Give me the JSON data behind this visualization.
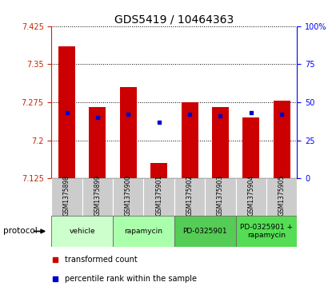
{
  "title": "GDS5419 / 10464363",
  "samples": [
    "GSM1375898",
    "GSM1375899",
    "GSM1375900",
    "GSM1375901",
    "GSM1375902",
    "GSM1375903",
    "GSM1375904",
    "GSM1375905"
  ],
  "transformed_counts": [
    7.385,
    7.265,
    7.305,
    7.155,
    7.275,
    7.265,
    7.245,
    7.278
  ],
  "percentile_ranks": [
    43,
    40,
    42,
    37,
    42,
    41,
    43,
    42
  ],
  "ylim_left": [
    7.125,
    7.425
  ],
  "yticks_left": [
    7.125,
    7.2,
    7.275,
    7.35,
    7.425
  ],
  "ytick_labels_left": [
    "7.125",
    "7.2",
    "7.275",
    "7.35",
    "7.425"
  ],
  "ylim_right": [
    0,
    100
  ],
  "yticks_right": [
    0,
    25,
    50,
    75,
    100
  ],
  "ytick_labels_right": [
    "0",
    "25",
    "50",
    "75",
    "100%"
  ],
  "bar_color": "#cc0000",
  "dot_color": "#0000cc",
  "bar_bottom": 7.125,
  "protocol_groups": [
    {
      "label": "vehicle",
      "indices": [
        0,
        1
      ],
      "color": "#ccffcc"
    },
    {
      "label": "rapamycin",
      "indices": [
        2,
        3
      ],
      "color": "#aaffaa"
    },
    {
      "label": "PD-0325901",
      "indices": [
        4,
        5
      ],
      "color": "#55cc55"
    },
    {
      "label": "PD-0325901 +\nrapamycin",
      "indices": [
        6,
        7
      ],
      "color": "#55dd55"
    }
  ],
  "sample_bg_color": "#cccccc",
  "legend_red_label": "transformed count",
  "legend_blue_label": "percentile rank within the sample",
  "protocol_label": "protocol",
  "title_fontsize": 10,
  "tick_fontsize": 7,
  "sample_fontsize": 5.5,
  "proto_fontsize": 6.5,
  "legend_fontsize": 7
}
